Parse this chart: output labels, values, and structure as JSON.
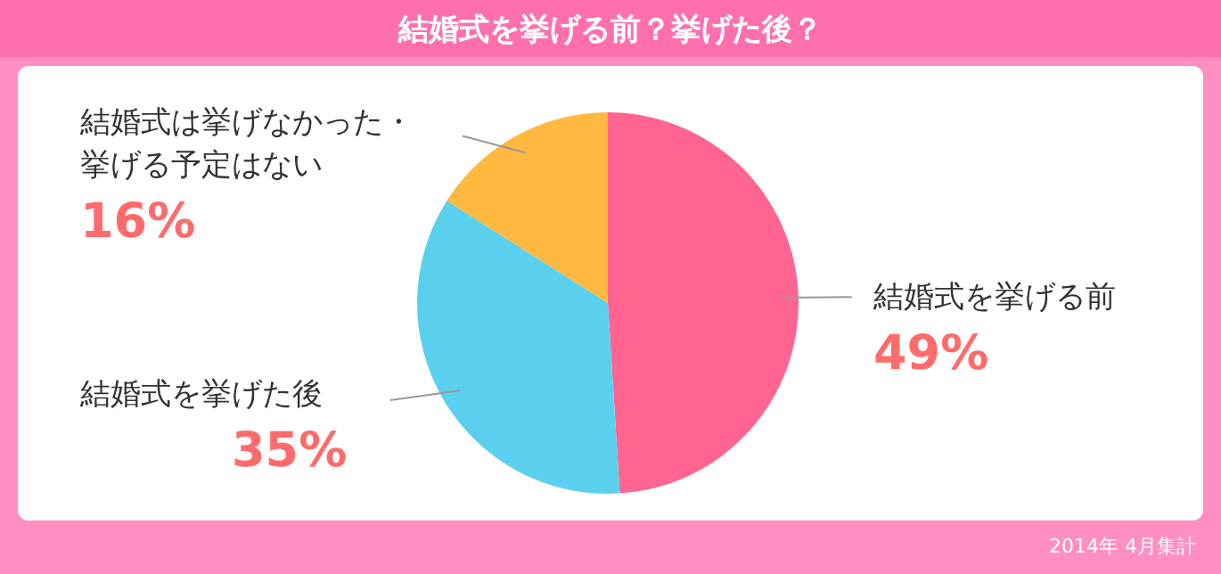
{
  "chart_data": {
    "type": "pie",
    "title": "結婚式を挙げる前？挙げた後？",
    "categories": [
      "結婚式を挙げる前",
      "結婚式を挙げた後",
      "結婚式は挙げなかった・挙げる予定はない"
    ],
    "values": [
      49,
      35,
      16
    ],
    "colors": [
      "#ff6590",
      "#5bcfee",
      "#ffb840"
    ],
    "value_labels": [
      "49%",
      "35%",
      "16%"
    ],
    "annotations": [
      "2014年 4月集計"
    ]
  }
}
